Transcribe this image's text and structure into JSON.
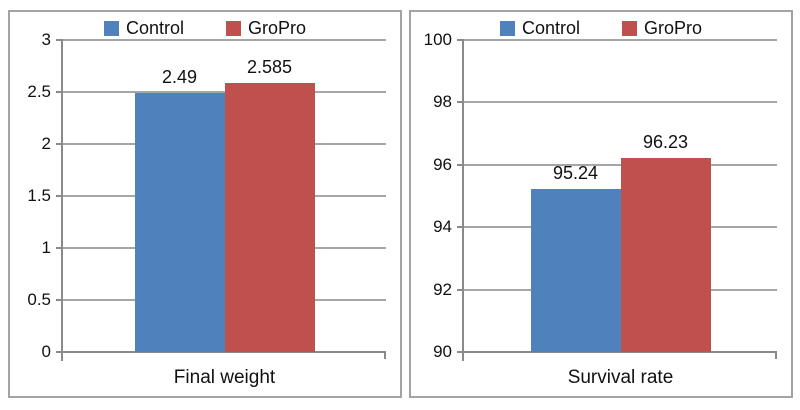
{
  "figure": {
    "background": "#FFFFFF",
    "panel_border_color": "#A3A3A3"
  },
  "colors": {
    "control": "#4F81BD",
    "gropro": "#C0504D",
    "gridline": "#A6A6A6",
    "axis": "#8A8A8A",
    "text": "#111111"
  },
  "chart_data": [
    {
      "type": "bar",
      "title": "",
      "categories": [
        "Final weight"
      ],
      "series": [
        {
          "name": "Control",
          "color": "#4F81BD",
          "value": 2.49,
          "label": "2.49"
        },
        {
          "name": "GroPro",
          "color": "#C0504D",
          "value": 2.585,
          "label": "2.585"
        }
      ],
      "ylim": [
        0,
        3
      ],
      "yticks": [
        "3",
        "2.5",
        "2",
        "1.5",
        "1",
        "0.5",
        "0"
      ],
      "grid": true,
      "legend_position": "top"
    },
    {
      "type": "bar",
      "title": "",
      "categories": [
        "Survival rate"
      ],
      "series": [
        {
          "name": "Control",
          "color": "#4F81BD",
          "value": 95.24,
          "label": "95.24"
        },
        {
          "name": "GroPro",
          "color": "#C0504D",
          "value": 96.23,
          "label": "96.23"
        }
      ],
      "ylim": [
        90,
        100
      ],
      "yticks": [
        "100",
        "98",
        "96",
        "94",
        "92",
        "90"
      ],
      "grid": true,
      "legend_position": "top"
    }
  ]
}
